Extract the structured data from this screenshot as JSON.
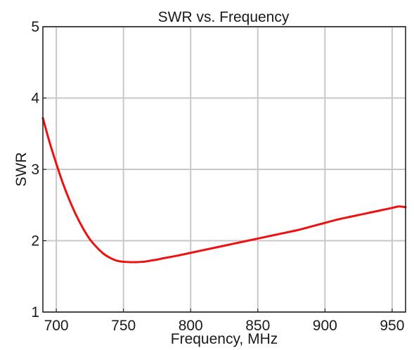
{
  "chart_data": {
    "type": "line",
    "title": "SWR vs. Frequency",
    "xlabel": "Frequency, MHz",
    "ylabel": "SWR",
    "xlim": [
      690,
      960
    ],
    "ylim": [
      1,
      5
    ],
    "xticks": [
      700,
      750,
      800,
      850,
      900,
      950
    ],
    "yticks": [
      1,
      2,
      3,
      4,
      5
    ],
    "grid": true,
    "legend": "none",
    "series": [
      {
        "color": "#ee1111",
        "x": [
          690,
          695,
          700,
          705,
          710,
          715,
          720,
          725,
          730,
          735,
          740,
          745,
          750,
          755,
          760,
          765,
          770,
          775,
          780,
          790,
          800,
          810,
          820,
          830,
          840,
          850,
          860,
          870,
          880,
          890,
          900,
          910,
          920,
          930,
          940,
          950,
          955,
          960
        ],
        "y": [
          3.72,
          3.38,
          3.08,
          2.8,
          2.56,
          2.35,
          2.17,
          2.02,
          1.91,
          1.82,
          1.76,
          1.72,
          1.705,
          1.7,
          1.7,
          1.705,
          1.72,
          1.735,
          1.755,
          1.79,
          1.83,
          1.87,
          1.91,
          1.95,
          1.99,
          2.03,
          2.07,
          2.11,
          2.15,
          2.2,
          2.25,
          2.3,
          2.34,
          2.38,
          2.42,
          2.46,
          2.48,
          2.47
        ]
      }
    ]
  }
}
